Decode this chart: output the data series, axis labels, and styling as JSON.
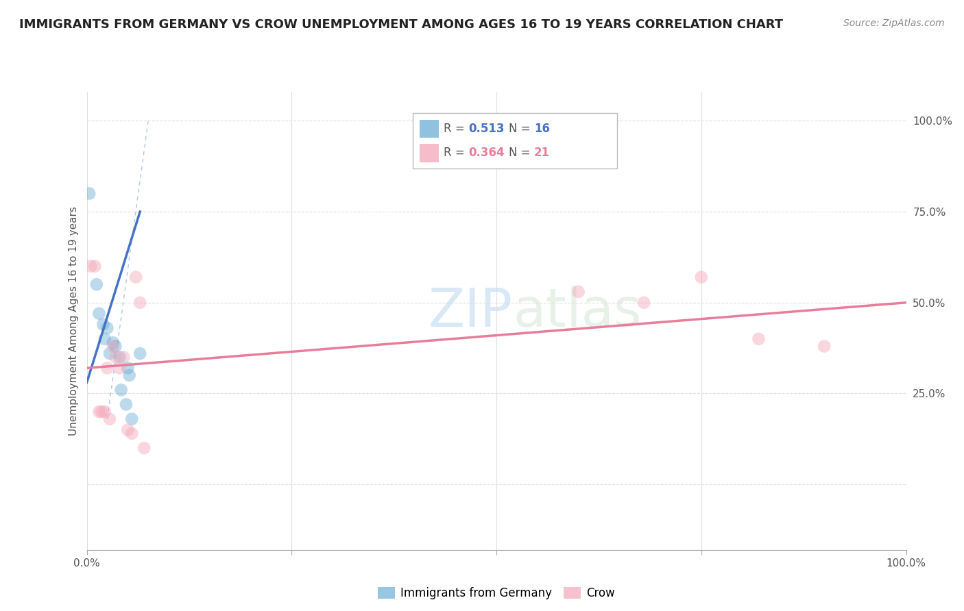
{
  "title": "IMMIGRANTS FROM GERMANY VS CROW UNEMPLOYMENT AMONG AGES 16 TO 19 YEARS CORRELATION CHART",
  "source": "Source: ZipAtlas.com",
  "ylabel": "Unemployment Among Ages 16 to 19 years",
  "watermark_zip": "ZIP",
  "watermark_atlas": "atlas",
  "blue_scatter": [
    [
      0.3,
      80.0
    ],
    [
      1.2,
      55.0
    ],
    [
      1.5,
      47.0
    ],
    [
      2.0,
      44.0
    ],
    [
      2.2,
      40.0
    ],
    [
      2.5,
      43.0
    ],
    [
      2.8,
      36.0
    ],
    [
      3.2,
      39.0
    ],
    [
      3.5,
      38.0
    ],
    [
      4.0,
      35.0
    ],
    [
      4.2,
      26.0
    ],
    [
      4.8,
      22.0
    ],
    [
      5.0,
      32.0
    ],
    [
      5.2,
      30.0
    ],
    [
      5.5,
      18.0
    ],
    [
      6.5,
      36.0
    ]
  ],
  "pink_scatter": [
    [
      0.5,
      60.0
    ],
    [
      1.0,
      60.0
    ],
    [
      1.5,
      20.0
    ],
    [
      1.8,
      20.0
    ],
    [
      2.2,
      20.0
    ],
    [
      2.5,
      32.0
    ],
    [
      2.8,
      18.0
    ],
    [
      3.2,
      38.0
    ],
    [
      3.5,
      35.0
    ],
    [
      4.0,
      32.0
    ],
    [
      4.5,
      35.0
    ],
    [
      5.0,
      15.0
    ],
    [
      5.5,
      14.0
    ],
    [
      6.0,
      57.0
    ],
    [
      6.5,
      50.0
    ],
    [
      7.0,
      10.0
    ],
    [
      60.0,
      53.0
    ],
    [
      68.0,
      50.0
    ],
    [
      75.0,
      57.0
    ],
    [
      82.0,
      40.0
    ],
    [
      90.0,
      38.0
    ]
  ],
  "blue_line_x": [
    0.0,
    6.5
  ],
  "blue_line_y": [
    28.0,
    75.0
  ],
  "pink_line_x": [
    0.0,
    100.0
  ],
  "pink_line_y": [
    32.0,
    50.0
  ],
  "dashed_line_x": [
    2.5,
    7.5
  ],
  "dashed_line_y": [
    18.0,
    100.0
  ],
  "blue_scatter_color": "#6baed6",
  "pink_scatter_color": "#f4a6b8",
  "blue_line_color": "#4472c4",
  "pink_line_color": "#e87d9a",
  "dashed_line_color": "#aac8e8",
  "background_color": "#ffffff",
  "grid_color": "#e0e0e0",
  "title_fontsize": 13,
  "axis_label_fontsize": 11,
  "tick_fontsize": 11,
  "scatter_size": 180,
  "scatter_alpha": 0.45,
  "xlim": [
    0,
    100
  ],
  "ylim": [
    -18,
    108
  ],
  "y_gridlines": [
    0,
    25,
    50,
    75,
    100
  ],
  "x_gridlines": [
    0,
    25,
    50,
    75,
    100
  ],
  "r_blue": "0.513",
  "n_blue": "16",
  "r_pink": "0.364",
  "n_pink": "21"
}
